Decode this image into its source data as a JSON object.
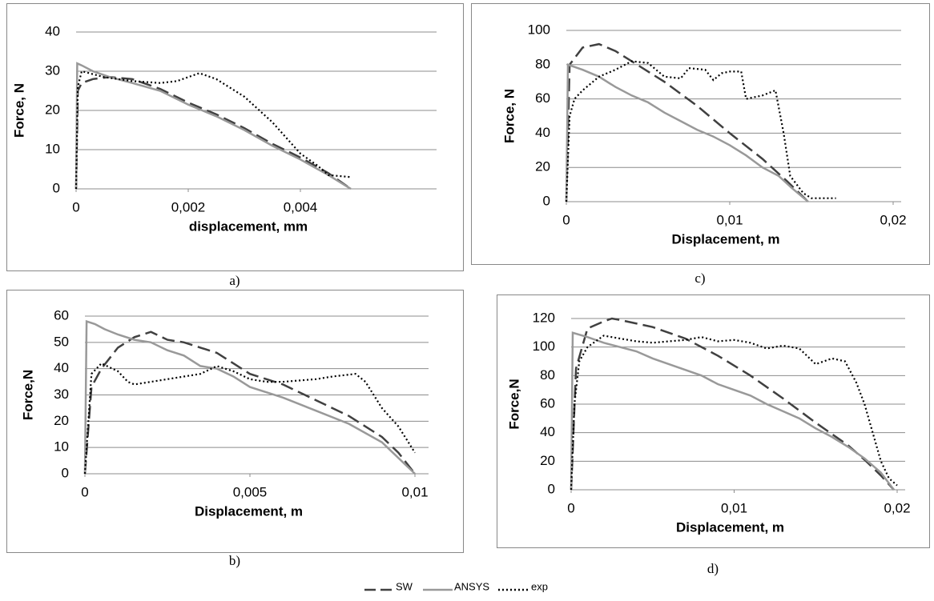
{
  "chart_data": [
    {
      "type": "line",
      "caption": "a)",
      "y_label": "Force, N",
      "x_label": "displacement, mm",
      "xlim": [
        0,
        0.006
      ],
      "ylim": [
        0,
        40
      ],
      "grid": true,
      "xticks": [
        0,
        {
          "value": 0.002,
          "label": "0,002"
        },
        {
          "value": 0.004,
          "label": "0,004"
        }
      ],
      "yticks": [
        0,
        10,
        20,
        30,
        40
      ],
      "series": [
        {
          "name": "SW",
          "color": "#404040",
          "style": "dashed",
          "x": [
            0,
            3e-05,
            0.0001,
            0.0003,
            0.0006,
            0.001,
            0.0015,
            0.002,
            0.0025,
            0.003,
            0.0035,
            0.004,
            0.0045,
            0.0049
          ],
          "values": [
            0,
            25,
            27,
            28,
            28.5,
            28,
            25.5,
            22,
            19,
            15.5,
            11.5,
            8,
            4,
            0
          ]
        },
        {
          "name": "ANSYS",
          "color": "#999999",
          "style": "solid",
          "x": [
            0,
            2e-05,
            0.0001,
            0.0003,
            0.0006,
            0.001,
            0.0015,
            0.002,
            0.0025,
            0.003,
            0.0035,
            0.004,
            0.0045,
            0.0049
          ],
          "values": [
            0,
            32,
            31.5,
            30,
            28.5,
            27,
            25,
            21.5,
            18.5,
            15,
            11,
            7.5,
            3.5,
            0
          ]
        },
        {
          "name": "exp",
          "color": "#000000",
          "style": "dotted",
          "x": [
            0,
            3e-05,
            0.0001,
            0.0005,
            0.001,
            0.0015,
            0.0018,
            0.0022,
            0.0025,
            0.003,
            0.0035,
            0.004,
            0.0043,
            0.0045,
            0.0049
          ],
          "values": [
            0,
            26,
            30,
            28.5,
            27.5,
            27,
            27.5,
            29.5,
            28,
            23.5,
            17,
            9,
            6,
            3.5,
            3
          ]
        }
      ]
    },
    {
      "type": "line",
      "caption": "c)",
      "y_label": "Force, N",
      "x_label": "Displacement, m",
      "xlim": [
        0,
        0.02
      ],
      "ylim": [
        0,
        100
      ],
      "grid": true,
      "xticks": [
        0,
        {
          "value": 0.01,
          "label": "0,01"
        },
        {
          "value": 0.02,
          "label": "0,02"
        }
      ],
      "yticks": [
        0,
        20,
        40,
        60,
        80,
        100
      ],
      "series": [
        {
          "name": "SW",
          "color": "#404040",
          "style": "dashed",
          "x": [
            0,
            0.0002,
            0.001,
            0.002,
            0.003,
            0.004,
            0.006,
            0.008,
            0.01,
            0.012,
            0.0135,
            0.0148
          ],
          "values": [
            0,
            80,
            90,
            92,
            88,
            82,
            70,
            56,
            40,
            25,
            12,
            0
          ]
        },
        {
          "name": "ANSYS",
          "color": "#999999",
          "style": "solid",
          "x": [
            0,
            0.0001,
            0.001,
            0.002,
            0.003,
            0.004,
            0.005,
            0.006,
            0.007,
            0.008,
            0.009,
            0.01,
            0.011,
            0.012,
            0.013,
            0.0138,
            0.0148
          ],
          "values": [
            0,
            80,
            77,
            73,
            67,
            62,
            58,
            52,
            47,
            42,
            38,
            33,
            27,
            20,
            15,
            8,
            0
          ]
        },
        {
          "name": "exp",
          "color": "#000000",
          "style": "dotted",
          "x": [
            0,
            0.0002,
            0.0005,
            0.001,
            0.002,
            0.003,
            0.004,
            0.005,
            0.006,
            0.007,
            0.0075,
            0.0085,
            0.009,
            0.0095,
            0.01,
            0.0107,
            0.011,
            0.012,
            0.0128,
            0.0133,
            0.0137,
            0.0145,
            0.015,
            0.0165
          ],
          "values": [
            0,
            50,
            60,
            65,
            73,
            77,
            82,
            81,
            73,
            72,
            78,
            77,
            71,
            75,
            76,
            76,
            60,
            62,
            65,
            40,
            15,
            5,
            2,
            2
          ]
        }
      ]
    },
    {
      "type": "line",
      "caption": "b)",
      "y_label": "Force,N",
      "x_label": "Displacement, m",
      "xlim": [
        0,
        0.01
      ],
      "ylim": [
        0,
        60
      ],
      "grid": true,
      "xticks": [
        0,
        {
          "value": 0.005,
          "label": "0,005"
        },
        {
          "value": 0.01,
          "label": "0,01"
        }
      ],
      "yticks": [
        0,
        10,
        20,
        30,
        40,
        50,
        60
      ],
      "series": [
        {
          "name": "SW",
          "color": "#404040",
          "style": "dashed",
          "x": [
            0,
            0.0002,
            0.0005,
            0.001,
            0.0015,
            0.002,
            0.0025,
            0.003,
            0.0035,
            0.004,
            0.0045,
            0.005,
            0.006,
            0.007,
            0.008,
            0.009,
            0.0095,
            0.01
          ],
          "values": [
            0,
            33,
            40,
            48,
            52,
            54,
            51,
            50,
            48,
            46,
            42,
            38,
            34,
            28,
            22,
            14,
            8,
            0
          ]
        },
        {
          "name": "ANSYS",
          "color": "#999999",
          "style": "solid",
          "x": [
            0,
            5e-05,
            0.0003,
            0.0006,
            0.001,
            0.0015,
            0.002,
            0.0025,
            0.003,
            0.0035,
            0.004,
            0.0045,
            0.005,
            0.006,
            0.007,
            0.008,
            0.009,
            0.0095,
            0.01
          ],
          "values": [
            0,
            58,
            57,
            55,
            53,
            51,
            50,
            47,
            45,
            41,
            40,
            37,
            33,
            29,
            24,
            19,
            12,
            6,
            0
          ]
        },
        {
          "name": "exp",
          "color": "#000000",
          "style": "dotted",
          "x": [
            0,
            0.0002,
            0.0005,
            0.001,
            0.0013,
            0.0015,
            0.002,
            0.003,
            0.0035,
            0.004,
            0.0045,
            0.005,
            0.0055,
            0.006,
            0.007,
            0.0075,
            0.0082,
            0.0085,
            0.009,
            0.0095,
            0.01
          ],
          "values": [
            0,
            38,
            42,
            39,
            35,
            34,
            35,
            37,
            38,
            41,
            39,
            36,
            35,
            35,
            36,
            37,
            38,
            35,
            25,
            18,
            8
          ]
        }
      ]
    },
    {
      "type": "line",
      "caption": "d)",
      "y_label": "Force,N",
      "x_label": "Displacement, m",
      "xlim": [
        0,
        0.02
      ],
      "ylim": [
        0,
        120
      ],
      "grid": true,
      "xticks": [
        0,
        {
          "value": 0.01,
          "label": "0,01"
        },
        {
          "value": 0.02,
          "label": "0,02"
        }
      ],
      "yticks": [
        0,
        20,
        40,
        60,
        80,
        100,
        120
      ],
      "series": [
        {
          "name": "SW",
          "color": "#404040",
          "style": "dashed",
          "x": [
            0,
            0.0003,
            0.001,
            0.002,
            0.0025,
            0.003,
            0.005,
            0.007,
            0.009,
            0.011,
            0.013,
            0.015,
            0.017,
            0.018,
            0.019,
            0.0198
          ],
          "values": [
            0,
            85,
            113,
            118,
            120,
            119,
            114,
            106,
            94,
            80,
            64,
            47,
            31,
            21,
            10,
            0
          ]
        },
        {
          "name": "ANSYS",
          "color": "#999999",
          "style": "solid",
          "x": [
            0,
            0.0001,
            0.001,
            0.002,
            0.003,
            0.004,
            0.005,
            0.006,
            0.007,
            0.008,
            0.009,
            0.01,
            0.011,
            0.012,
            0.013,
            0.014,
            0.015,
            0.016,
            0.017,
            0.018,
            0.019,
            0.0198
          ],
          "values": [
            0,
            110,
            107,
            103,
            100,
            97,
            92,
            88,
            84,
            80,
            74,
            70,
            66,
            60,
            55,
            50,
            43,
            37,
            30,
            22,
            12,
            0
          ]
        },
        {
          "name": "exp",
          "color": "#000000",
          "style": "dotted",
          "x": [
            0,
            0.0002,
            0.0005,
            0.001,
            0.002,
            0.003,
            0.004,
            0.005,
            0.006,
            0.007,
            0.008,
            0.009,
            0.01,
            0.011,
            0.012,
            0.013,
            0.014,
            0.015,
            0.016,
            0.0168,
            0.0175,
            0.018,
            0.0185,
            0.019,
            0.0195,
            0.02
          ],
          "values": [
            0,
            60,
            90,
            100,
            108,
            106,
            104,
            103,
            104,
            105,
            107,
            104,
            105,
            103,
            99,
            101,
            99,
            88,
            92,
            90,
            75,
            60,
            40,
            20,
            8,
            3
          ]
        }
      ]
    }
  ]
}
